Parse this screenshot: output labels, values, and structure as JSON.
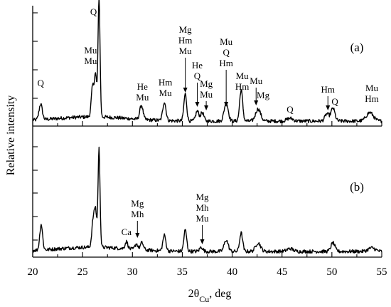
{
  "chart_data": {
    "type": "line",
    "xlabel": "2θCu, deg",
    "xlabel_base": "2θ",
    "xlabel_sub": "Cu",
    "xlabel_suffix": ", deg",
    "ylabel": "Relative intensity",
    "xlim": [
      20,
      55
    ],
    "x_ticks": [
      20,
      25,
      30,
      35,
      40,
      45,
      50,
      55
    ],
    "x_tick_labels": [
      "20",
      "25",
      "30",
      "35",
      "40",
      "45",
      "50",
      "55"
    ],
    "panels": [
      {
        "label": "(a)",
        "baseline": 22,
        "peaks": [
          {
            "x": 20.8,
            "h": 22,
            "w": 0.16
          },
          {
            "x": 26.0,
            "h": 42,
            "w": 0.13
          },
          {
            "x": 26.3,
            "h": 58,
            "w": 0.12
          },
          {
            "x": 26.65,
            "h": 168,
            "w": 0.1
          },
          {
            "x": 30.9,
            "h": 20,
            "w": 0.16
          },
          {
            "x": 33.2,
            "h": 26,
            "w": 0.16
          },
          {
            "x": 35.3,
            "h": 38,
            "w": 0.14
          },
          {
            "x": 36.5,
            "h": 14,
            "w": 0.16
          },
          {
            "x": 37.0,
            "h": 12,
            "w": 0.16
          },
          {
            "x": 39.4,
            "h": 26,
            "w": 0.2
          },
          {
            "x": 40.9,
            "h": 44,
            "w": 0.15
          },
          {
            "x": 42.6,
            "h": 17,
            "w": 0.25
          },
          {
            "x": 45.8,
            "h": 4,
            "w": 0.3
          },
          {
            "x": 49.5,
            "h": 10,
            "w": 0.2
          },
          {
            "x": 50.1,
            "h": 18,
            "w": 0.2
          },
          {
            "x": 53.8,
            "h": 12,
            "w": 0.35
          }
        ],
        "annotations": [
          {
            "lines": [
              "Q"
            ],
            "x": 20.8,
            "arrow": false
          },
          {
            "lines": [
              "Mu",
              "Mu"
            ],
            "x": 25.8,
            "arrow": false
          },
          {
            "lines": [
              "Q"
            ],
            "x": 26.1,
            "arrow": false
          },
          {
            "lines": [
              "He",
              "Mu"
            ],
            "x": 31.0,
            "arrow": false
          },
          {
            "lines": [
              "Hm",
              "Mu"
            ],
            "x": 33.3,
            "arrow": false
          },
          {
            "lines": [
              "Mg",
              "Hm",
              "Mu"
            ],
            "x": 35.3,
            "arrow": true
          },
          {
            "lines": [
              "He",
              "Q"
            ],
            "x": 36.5,
            "arrow": true
          },
          {
            "lines": [
              "Mg",
              "Mu"
            ],
            "x": 37.4,
            "arrow": true
          },
          {
            "lines": [
              "Mu",
              "Q",
              "Hm"
            ],
            "x": 39.4,
            "arrow": true
          },
          {
            "lines": [
              "Mu",
              "Hm"
            ],
            "x": 41.0,
            "arrow": false
          },
          {
            "lines": [
              "Mu"
            ],
            "x": 42.4,
            "arrow": true
          },
          {
            "lines": [
              "Mg"
            ],
            "x": 43.1,
            "arrow": false
          },
          {
            "lines": [
              "Q"
            ],
            "x": 45.8,
            "arrow": false
          },
          {
            "lines": [
              "Hm"
            ],
            "x": 49.6,
            "arrow": true
          },
          {
            "lines": [
              "Q"
            ],
            "x": 50.3,
            "arrow": false
          },
          {
            "lines": [
              "Mu",
              "Hm"
            ],
            "x": 54.0,
            "arrow": false
          }
        ]
      },
      {
        "label": "(b)",
        "baseline": 16,
        "peaks": [
          {
            "x": 20.85,
            "h": 36,
            "w": 0.14
          },
          {
            "x": 26.05,
            "h": 36,
            "w": 0.13
          },
          {
            "x": 26.3,
            "h": 50,
            "w": 0.12
          },
          {
            "x": 26.65,
            "h": 138,
            "w": 0.1
          },
          {
            "x": 29.4,
            "h": 10,
            "w": 0.14
          },
          {
            "x": 30.4,
            "h": 8,
            "w": 0.14
          },
          {
            "x": 30.95,
            "h": 10,
            "w": 0.15
          },
          {
            "x": 33.2,
            "h": 22,
            "w": 0.15
          },
          {
            "x": 35.3,
            "h": 30,
            "w": 0.14
          },
          {
            "x": 36.9,
            "h": 6,
            "w": 0.16
          },
          {
            "x": 39.4,
            "h": 16,
            "w": 0.2
          },
          {
            "x": 40.9,
            "h": 26,
            "w": 0.15
          },
          {
            "x": 42.6,
            "h": 12,
            "w": 0.25
          },
          {
            "x": 45.8,
            "h": 4,
            "w": 0.3
          },
          {
            "x": 50.1,
            "h": 12,
            "w": 0.2
          },
          {
            "x": 54.0,
            "h": 5,
            "w": 0.35
          }
        ],
        "annotations": [
          {
            "lines": [
              "Ca"
            ],
            "x": 29.4,
            "arrow": false
          },
          {
            "lines": [
              "Mg",
              "Mh"
            ],
            "x": 30.5,
            "arrow": true
          },
          {
            "lines": [
              "Mg",
              "Mh",
              "Mu"
            ],
            "x": 37.0,
            "arrow": true
          }
        ]
      }
    ]
  }
}
